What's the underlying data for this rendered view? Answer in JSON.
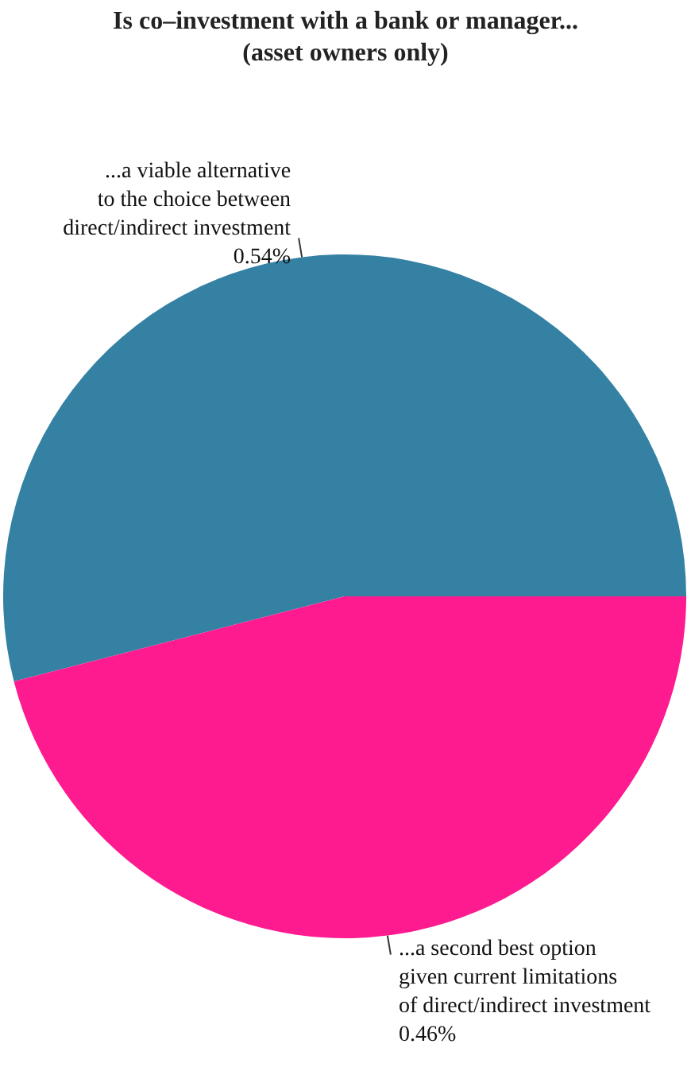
{
  "chart_data": {
    "type": "pie",
    "title": "Is co–investment with a bank or manager...",
    "subtitle": "(asset owners only)",
    "categories": [
      "...a viable alternative\nto the choice between\ndirect/indirect investment",
      "...a second best option\ngiven current limitations\nof direct/indirect investment"
    ],
    "values": [
      0.54,
      0.46
    ],
    "value_labels": [
      "0.54%",
      "0.46%"
    ],
    "colors": [
      "#3481a4",
      "#fe1a8f"
    ],
    "legend": false
  }
}
